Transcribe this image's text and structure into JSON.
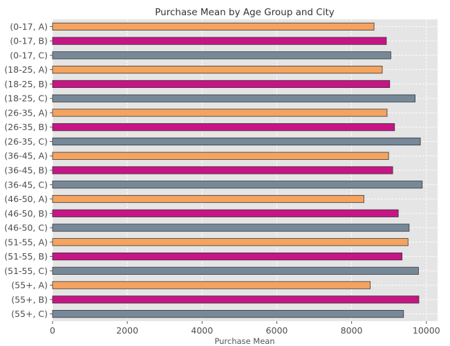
{
  "chart_data": {
    "type": "bar",
    "orientation": "horizontal",
    "title": "Purchase Mean by Age Group and City",
    "xlabel": "Purchase Mean",
    "ylabel": "",
    "xlim": [
      0,
      10300
    ],
    "xticks": [
      "0",
      "2000",
      "4000",
      "6000",
      "8000",
      "10000"
    ],
    "grid": true,
    "colors": {
      "A": "#F4A460",
      "B": "#C71585",
      "C": "#778899"
    },
    "categories": [
      "(0-17, A)",
      "(0-17, B)",
      "(0-17, C)",
      "(18-25, A)",
      "(18-25, B)",
      "(18-25, C)",
      "(26-35, A)",
      "(26-35, B)",
      "(26-35, C)",
      "(36-45, A)",
      "(36-45, B)",
      "(36-45, C)",
      "(46-50, A)",
      "(46-50, B)",
      "(46-50, C)",
      "(51-55, A)",
      "(51-55, B)",
      "(51-55, C)",
      "(55+, A)",
      "(55+, B)",
      "(55+, C)"
    ],
    "city": [
      "A",
      "B",
      "C",
      "A",
      "B",
      "C",
      "A",
      "B",
      "C",
      "A",
      "B",
      "C",
      "A",
      "B",
      "C",
      "A",
      "B",
      "C",
      "A",
      "B",
      "C"
    ],
    "values": [
      8600,
      8930,
      9050,
      8820,
      9020,
      9700,
      8950,
      9150,
      9840,
      8990,
      9100,
      9890,
      8330,
      9250,
      9540,
      9510,
      9350,
      9790,
      8500,
      9800,
      9390
    ]
  }
}
